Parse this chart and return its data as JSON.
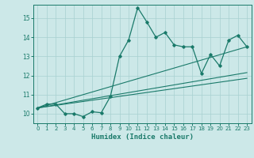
{
  "title": "",
  "xlabel": "Humidex (Indice chaleur)",
  "ylabel": "",
  "background_color": "#cce8e8",
  "line_color": "#1a7a6a",
  "xlim": [
    -0.5,
    23.5
  ],
  "ylim": [
    9.5,
    15.7
  ],
  "xticks": [
    0,
    1,
    2,
    3,
    4,
    5,
    6,
    7,
    8,
    9,
    10,
    11,
    12,
    13,
    14,
    15,
    16,
    17,
    18,
    19,
    20,
    21,
    22,
    23
  ],
  "yticks": [
    10,
    11,
    12,
    13,
    14,
    15
  ],
  "series": [
    [
      0,
      10.3
    ],
    [
      1,
      10.5
    ],
    [
      2,
      10.5
    ],
    [
      3,
      10.0
    ],
    [
      4,
      10.0
    ],
    [
      5,
      9.85
    ],
    [
      6,
      10.1
    ],
    [
      7,
      10.05
    ],
    [
      8,
      10.9
    ],
    [
      9,
      13.0
    ],
    [
      10,
      13.85
    ],
    [
      11,
      15.55
    ],
    [
      12,
      14.8
    ],
    [
      13,
      14.0
    ],
    [
      14,
      14.25
    ],
    [
      15,
      13.6
    ],
    [
      16,
      13.5
    ],
    [
      17,
      13.5
    ],
    [
      18,
      12.1
    ],
    [
      19,
      13.1
    ],
    [
      20,
      12.5
    ],
    [
      21,
      13.85
    ],
    [
      22,
      14.1
    ],
    [
      23,
      13.5
    ]
  ],
  "linear_series": [
    [
      [
        0,
        10.3
      ],
      [
        23,
        11.85
      ]
    ],
    [
      [
        0,
        10.3
      ],
      [
        23,
        12.15
      ]
    ],
    [
      [
        0,
        10.3
      ],
      [
        23,
        13.5
      ]
    ]
  ],
  "figsize": [
    3.2,
    2.0
  ],
  "dpi": 100
}
